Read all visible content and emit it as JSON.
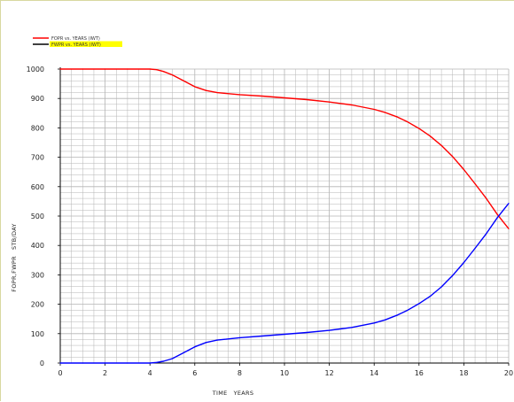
{
  "chart_data": {
    "type": "line",
    "title": "",
    "xlabel": "TIME   YEARS",
    "ylabel": "FOPR,FWPR   STB/DAY",
    "xlim": [
      0,
      20
    ],
    "ylim": [
      0,
      1000
    ],
    "x_ticks": [
      "0",
      "2",
      "4",
      "6",
      "8",
      "10",
      "12",
      "14",
      "16",
      "18",
      "20"
    ],
    "y_ticks": [
      "0",
      "100",
      "200",
      "300",
      "400",
      "500",
      "600",
      "700",
      "800",
      "900",
      "1000"
    ],
    "grid": true,
    "legend_position": "top-left",
    "series": [
      {
        "name": "FOPR  vs.  YEARS (IWT)",
        "color": "#ff0000",
        "x": [
          0,
          1,
          2,
          3,
          4,
          4.3,
          4.6,
          5,
          5.5,
          6,
          6.5,
          7,
          8,
          9,
          10,
          11,
          12,
          13,
          14,
          14.5,
          15,
          15.5,
          16,
          16.5,
          17,
          17.5,
          18,
          18.5,
          19,
          19.5,
          20
        ],
        "y": [
          1000,
          1000,
          1000,
          1000,
          1000,
          998,
          992,
          980,
          960,
          940,
          927,
          920,
          913,
          908,
          902,
          896,
          888,
          878,
          863,
          852,
          838,
          820,
          798,
          772,
          740,
          702,
          658,
          610,
          560,
          505,
          457
        ]
      },
      {
        "name": "FWPR  vs.  YEARS (IWT)",
        "color": "#0000ff",
        "x": [
          0,
          1,
          2,
          3,
          4,
          4.3,
          4.6,
          5,
          5.5,
          6,
          6.5,
          7,
          8,
          9,
          10,
          11,
          12,
          13,
          14,
          14.5,
          15,
          15.5,
          16,
          16.5,
          17,
          17.5,
          18,
          18.5,
          19,
          19.5,
          20
        ],
        "y": [
          0,
          0,
          0,
          0,
          0,
          2,
          6,
          15,
          35,
          55,
          70,
          78,
          86,
          92,
          98,
          104,
          111,
          121,
          136,
          147,
          162,
          180,
          202,
          227,
          259,
          298,
          342,
          390,
          440,
          495,
          543
        ]
      }
    ]
  },
  "colors": {
    "grid": "#b4b4b4",
    "axis": "#000000",
    "legend_highlight": "#ffff00"
  }
}
